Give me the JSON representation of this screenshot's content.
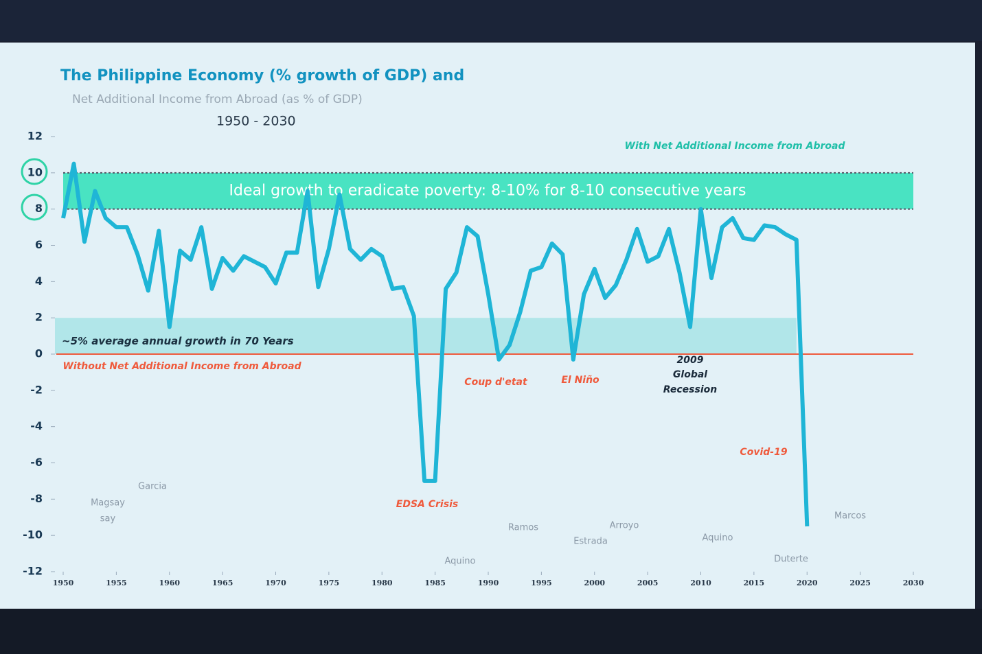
{
  "chart_data": {
    "type": "line",
    "title": "The Philippine Economy (% growth of GDP) and",
    "subtitle": "Net Additional Income from Abroad (as % of GDP)",
    "period": "1950 - 2030",
    "x": [
      1950,
      1951,
      1952,
      1953,
      1954,
      1955,
      1956,
      1957,
      1958,
      1959,
      1960,
      1961,
      1962,
      1963,
      1964,
      1965,
      1966,
      1967,
      1968,
      1969,
      1970,
      1971,
      1972,
      1973,
      1974,
      1975,
      1976,
      1977,
      1978,
      1979,
      1980,
      1981,
      1982,
      1983,
      1984,
      1985,
      1986,
      1987,
      1988,
      1989,
      1990,
      1991,
      1992,
      1993,
      1994,
      1995,
      1996,
      1997,
      1998,
      1999,
      2000,
      2001,
      2002,
      2003,
      2004,
      2005,
      2006,
      2007,
      2008,
      2009,
      2010,
      2011,
      2012,
      2013,
      2014,
      2015,
      2016,
      2017,
      2018,
      2019,
      2020
    ],
    "values": [
      7.5,
      10.5,
      6.2,
      9.0,
      7.5,
      7.0,
      7.0,
      5.5,
      3.5,
      6.8,
      1.5,
      5.7,
      5.2,
      7.0,
      3.6,
      5.3,
      4.6,
      5.4,
      5.1,
      4.8,
      3.9,
      5.6,
      5.6,
      9.0,
      3.7,
      5.8,
      8.8,
      5.8,
      5.2,
      5.8,
      5.4,
      3.6,
      3.7,
      2.1,
      -7.0,
      -7.0,
      3.6,
      4.5,
      7.0,
      6.5,
      3.3,
      -0.3,
      0.5,
      2.3,
      4.6,
      4.8,
      6.1,
      5.5,
      -0.3,
      3.3,
      4.7,
      3.1,
      3.8,
      5.2,
      6.9,
      5.1,
      5.4,
      6.9,
      4.5,
      1.5,
      8.0,
      4.2,
      7.0,
      7.5,
      6.4,
      6.3,
      7.1,
      7.0,
      6.6,
      6.3,
      -9.5
    ],
    "color": "#1fb5d6",
    "xlim": [
      1950,
      2030
    ],
    "ylim": [
      -12,
      12
    ],
    "xticks": [
      1950,
      1955,
      1960,
      1965,
      1970,
      1975,
      1980,
      1985,
      1990,
      1995,
      2000,
      2005,
      2010,
      2015,
      2020,
      2025,
      2030
    ],
    "yticks": [
      -12,
      -10,
      -8,
      -6,
      -4,
      -2,
      0,
      2,
      4,
      6,
      8,
      10,
      12
    ],
    "bands": [
      {
        "from": 8,
        "to": 10,
        "label": "Ideal growth to eradicate poverty: 8-10% for 8-10 consecutive years",
        "color": "#2ee0b8"
      },
      {
        "from": 0,
        "to": 2,
        "label": "~5% average annual growth in 70 Years",
        "color": "#8fe0e0"
      }
    ],
    "annotations": [
      "With Net Additional Income from Abroad",
      "Without Net Additional Income from Abroad",
      "EDSA Crisis",
      "Coup d'etat",
      "El Niño",
      "2009",
      "Global",
      "Recession",
      "Covid-19",
      "Magsay",
      "say",
      "Garcia",
      "Ramos",
      "Aquino",
      "Estrada",
      "Arroyo",
      "Aquino",
      "Duterte",
      "Marcos"
    ]
  }
}
